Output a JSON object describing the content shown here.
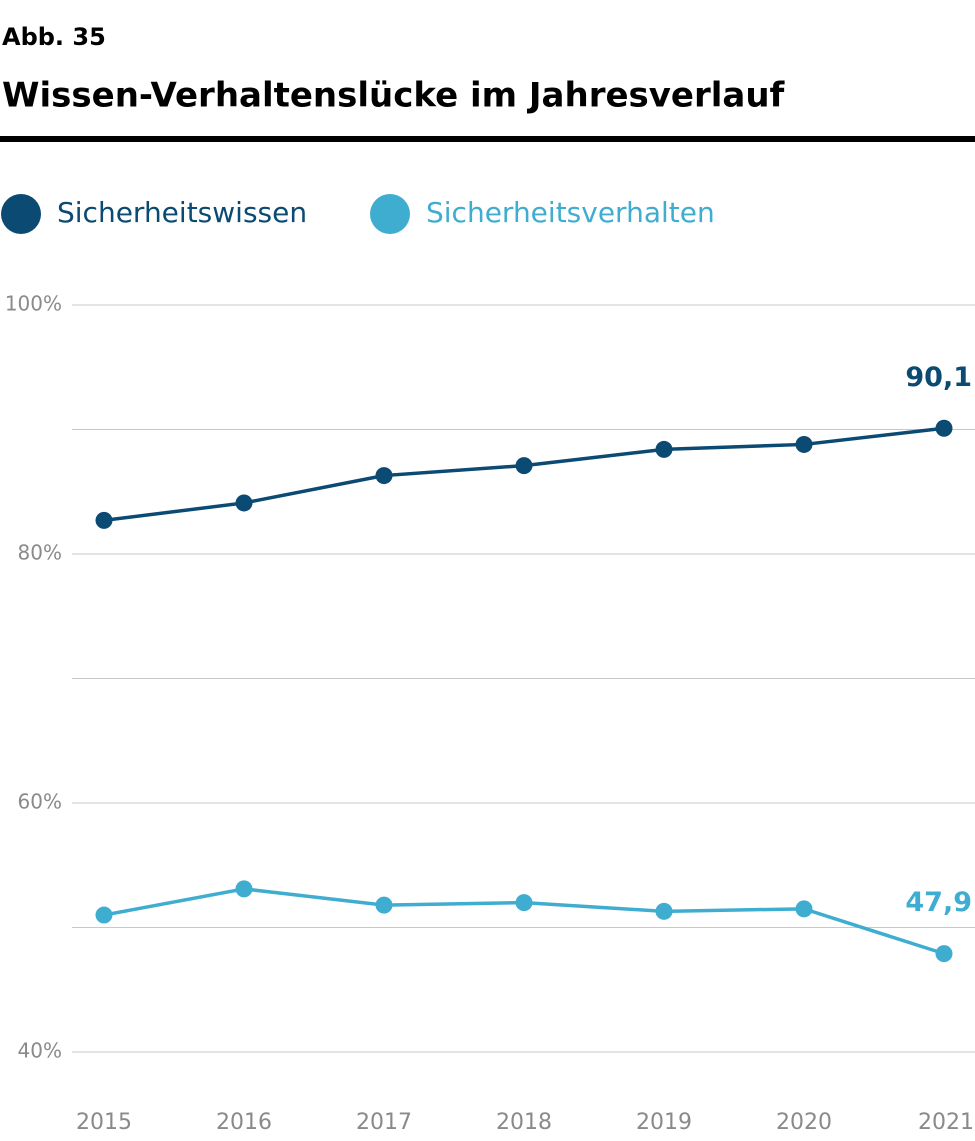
{
  "chart_data": {
    "type": "line",
    "label": "Abb. 35",
    "title": "Wissen-Verhaltenslücke im Jahresverlauf",
    "categories": [
      "2015",
      "2016",
      "2017",
      "2018",
      "2019",
      "2020",
      "2021"
    ],
    "series": [
      {
        "name": "Sicherheitswissen",
        "color": "#0b4a72",
        "values": [
          82.7,
          84.1,
          86.3,
          87.1,
          88.4,
          88.8,
          90.1
        ],
        "value_labels": [
          null,
          null,
          null,
          null,
          null,
          null,
          "90,1"
        ]
      },
      {
        "name": "Sicherheitsverhalten",
        "color": "#3fadd0",
        "values": [
          51.0,
          53.1,
          51.8,
          52.0,
          51.3,
          51.5,
          47.9
        ],
        "value_labels": [
          null,
          null,
          null,
          null,
          null,
          null,
          "47,9"
        ]
      }
    ],
    "ylim": [
      40,
      100
    ],
    "yticks": [
      {
        "value": 100,
        "label": "100%"
      },
      {
        "value": 80,
        "label": "80%"
      },
      {
        "value": 60,
        "label": "60%"
      },
      {
        "value": 40,
        "label": "40%"
      }
    ],
    "minor_yticks": [
      90,
      70,
      50
    ],
    "grid": true
  }
}
